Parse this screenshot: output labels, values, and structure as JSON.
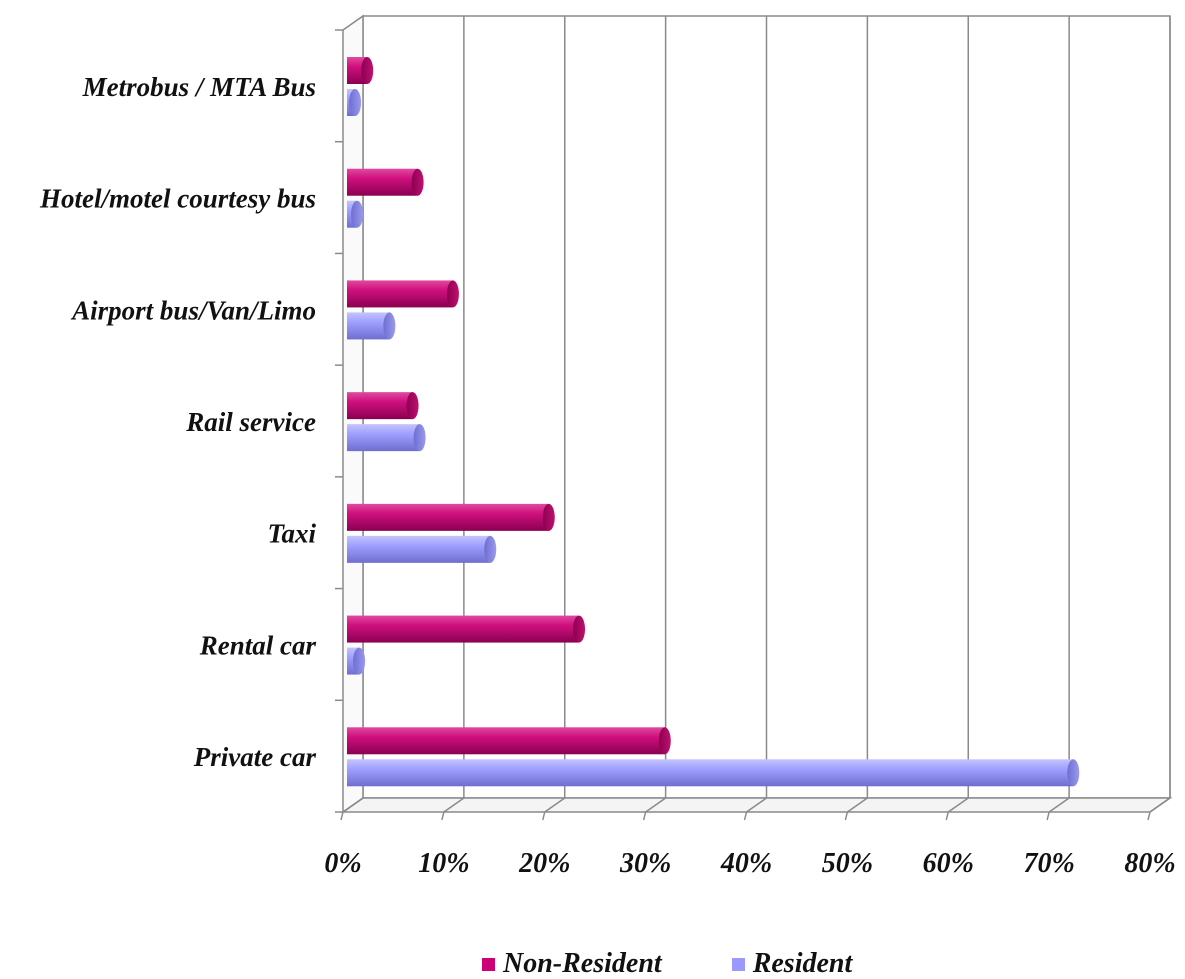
{
  "chart_data": {
    "type": "bar",
    "orientation": "horizontal",
    "style": "3d-cylinder",
    "categories": [
      "Metrobus / MTA Bus",
      "Hotel/motel courtesy bus",
      "Airport bus/Van/Limo",
      "Rail service",
      "Taxi",
      "Rental car",
      "Private car"
    ],
    "series": [
      {
        "name": "Non-Resident",
        "color": "#cc0077",
        "values": [
          2,
          7,
          10.5,
          6.5,
          20,
          23,
          31.5
        ]
      },
      {
        "name": "Resident",
        "color": "#9999ff",
        "values": [
          0.8,
          1,
          4.2,
          7.2,
          14.2,
          1.2,
          72
        ]
      }
    ],
    "xlim": [
      0,
      80
    ],
    "xticks": [
      "0%",
      "10%",
      "20%",
      "30%",
      "40%",
      "50%",
      "60%",
      "70%",
      "80%"
    ],
    "grid": true,
    "legend_position": "bottom"
  }
}
